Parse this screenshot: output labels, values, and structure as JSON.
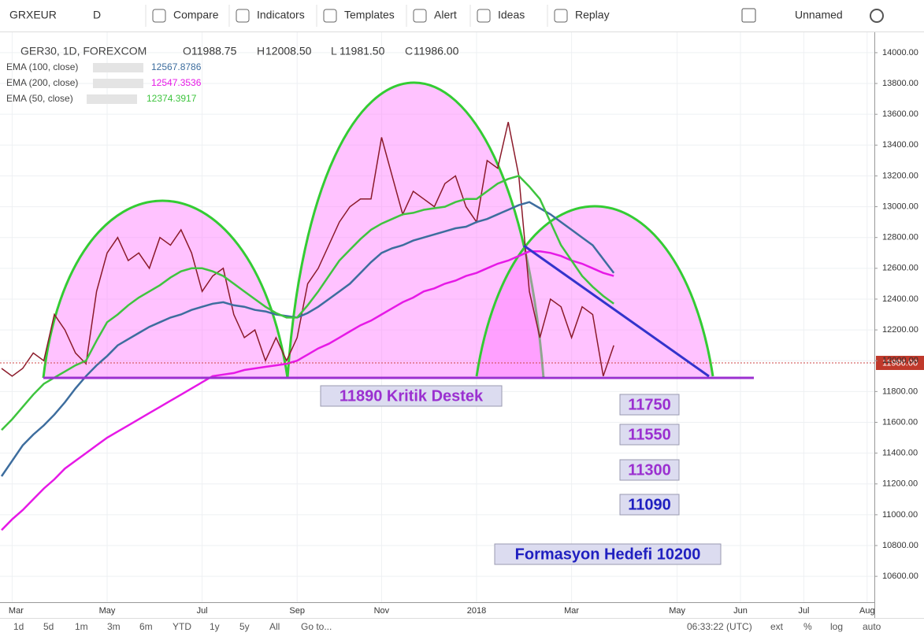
{
  "toolbar": {
    "symbol": "GRXEUR",
    "interval": "D",
    "items": [
      "Compare",
      "Indicators",
      "Templates",
      "Alert",
      "Ideas",
      "Replay"
    ],
    "layout_name": "Unnamed"
  },
  "chart_data": {
    "type": "line",
    "ohlc": [
      {
        "label": "O",
        "value": "11988.75"
      },
      {
        "label": "H",
        "value": "12008.50"
      },
      {
        "label": "L",
        "value": "11981.50"
      },
      {
        "label": "C",
        "value": "11986.00"
      }
    ],
    "last_price_label": "11986.00",
    "annotations": [
      "11890 Kritik Destek",
      "11750",
      "11550",
      "11300",
      "11090",
      "Formasyon Hedefi 10200"
    ],
    "categories": [
      null,
      "Mar",
      null,
      null,
      null,
      null,
      null,
      null,
      null,
      null,
      "May",
      null,
      null,
      null,
      null,
      null,
      null,
      null,
      null,
      "Jul",
      null,
      null,
      null,
      null,
      null,
      null,
      null,
      null,
      "Sep",
      null,
      null,
      null,
      null,
      null,
      null,
      null,
      "Nov",
      null,
      null,
      null,
      null,
      null,
      null,
      null,
      null,
      "2018",
      null,
      null,
      null,
      null,
      null,
      null,
      null,
      null,
      "Mar",
      null,
      null,
      null,
      null,
      null,
      null,
      null,
      null,
      null,
      "May",
      null,
      null,
      null,
      null,
      null,
      "Jun",
      null,
      null,
      null,
      null,
      null,
      "Jul",
      null,
      null,
      null,
      null,
      null,
      "Aug"
    ],
    "series": [
      {
        "name": "GER30, 1D, FOREXCOM",
        "color": "#8b1a2a",
        "values": [
          11950,
          11900,
          11950,
          12050,
          12000,
          12300,
          12200,
          12050,
          11980,
          12450,
          12700,
          12800,
          12650,
          12700,
          12600,
          12800,
          12750,
          12850,
          12700,
          12450,
          12550,
          12600,
          12300,
          12150,
          12200,
          12000,
          12150,
          12000,
          12150,
          12500,
          12600,
          12750,
          12900,
          13000,
          13050,
          13050,
          13450,
          13200,
          12950,
          13100,
          13050,
          13000,
          13150,
          13200,
          13000,
          12900,
          13300,
          13250,
          13550,
          13200,
          12450,
          12150,
          12400,
          12350,
          12150,
          12350,
          12300,
          11900,
          12100,
          null,
          null,
          null,
          null,
          null,
          null,
          null,
          null,
          null,
          null,
          null,
          null,
          null,
          null,
          null,
          null,
          null,
          null,
          null,
          null,
          null,
          null,
          null,
          null
        ]
      },
      {
        "name": "EMA (100, close)",
        "color": "#3d6d9e",
        "legend_value": "12567.8786",
        "values": [
          11250,
          11350,
          11450,
          11520,
          11580,
          11650,
          11730,
          11820,
          11900,
          11970,
          12030,
          12100,
          12140,
          12180,
          12220,
          12250,
          12280,
          12300,
          12330,
          12350,
          12370,
          12380,
          12360,
          12350,
          12330,
          12320,
          12300,
          12290,
          12280,
          12310,
          12350,
          12400,
          12450,
          12500,
          12570,
          12640,
          12700,
          12730,
          12750,
          12780,
          12800,
          12820,
          12840,
          12860,
          12870,
          12900,
          12920,
          12950,
          12980,
          13010,
          13030,
          12990,
          12950,
          12900,
          12850,
          12800,
          12750,
          12660,
          12570,
          null,
          null,
          null,
          null,
          null,
          null,
          null,
          null,
          null,
          null,
          null,
          null,
          null,
          null,
          null,
          null,
          null,
          null,
          null,
          null,
          null,
          null,
          null,
          null
        ]
      },
      {
        "name": "EMA (200, close)",
        "color": "#e619e6",
        "legend_value": "12547.3536",
        "values": [
          10900,
          10970,
          11030,
          11100,
          11170,
          11230,
          11300,
          11350,
          11400,
          11450,
          11500,
          11540,
          11580,
          11620,
          11660,
          11700,
          11740,
          11780,
          11820,
          11860,
          11900,
          11910,
          11920,
          11940,
          11950,
          11960,
          11970,
          11980,
          12000,
          12040,
          12080,
          12110,
          12150,
          12190,
          12230,
          12260,
          12300,
          12340,
          12380,
          12410,
          12450,
          12470,
          12500,
          12520,
          12550,
          12570,
          12600,
          12630,
          12650,
          12680,
          12710,
          12710,
          12700,
          12680,
          12650,
          12630,
          12600,
          12570,
          12550,
          null,
          null,
          null,
          null,
          null,
          null,
          null,
          null,
          null,
          null,
          null,
          null,
          null,
          null,
          null,
          null,
          null,
          null,
          null,
          null,
          null,
          null,
          null,
          null
        ]
      },
      {
        "name": "EMA (50, close)",
        "color": "#3ec43e",
        "legend_value": "12374.3917",
        "values": [
          11550,
          11620,
          11700,
          11780,
          11850,
          11890,
          11930,
          11970,
          12000,
          12130,
          12250,
          12300,
          12360,
          12410,
          12450,
          12490,
          12540,
          12580,
          12600,
          12600,
          12580,
          12550,
          12500,
          12450,
          12400,
          12350,
          12310,
          12280,
          12280,
          12360,
          12450,
          12550,
          12650,
          12720,
          12790,
          12850,
          12890,
          12920,
          12950,
          12960,
          12980,
          12990,
          13000,
          13030,
          13050,
          13050,
          13100,
          13150,
          13180,
          13200,
          13130,
          13050,
          12900,
          12750,
          12650,
          12550,
          12480,
          12420,
          12370,
          null,
          null,
          null,
          null,
          null,
          null,
          null,
          null,
          null,
          null,
          null,
          null,
          null,
          null,
          null,
          null,
          null,
          null,
          null,
          null,
          null,
          null,
          null,
          null
        ]
      }
    ],
    "ylim": [
      10432,
      14112
    ],
    "yticks": [
      {
        "value": 10600,
        "label": "10600.00"
      },
      {
        "value": 10800,
        "label": "10800.00"
      },
      {
        "value": 11000,
        "label": "11000.00"
      },
      {
        "value": 11200,
        "label": "11200.00"
      },
      {
        "value": 11400,
        "label": "11400.00"
      },
      {
        "value": 11600,
        "label": "11600.00"
      },
      {
        "value": 11800,
        "label": "11800.00"
      },
      {
        "value": 12000,
        "label": "12000.00"
      },
      {
        "value": 12200,
        "label": "12200.00"
      },
      {
        "value": 12400,
        "label": "12400.00"
      },
      {
        "value": 12600,
        "label": "12600.00"
      },
      {
        "value": 12800,
        "label": "12800.00"
      },
      {
        "value": 13000,
        "label": "13000.00"
      },
      {
        "value": 13200,
        "label": "13200.00"
      },
      {
        "value": 13400,
        "label": "13400.00"
      },
      {
        "value": 13600,
        "label": "13600.00"
      },
      {
        "value": 13800,
        "label": "13800.00"
      },
      {
        "value": 14000,
        "label": "14000.00"
      }
    ],
    "grid": true
  },
  "bottom_bar": {
    "ranges": [
      "1d",
      "5d",
      "1m",
      "3m",
      "6m",
      "YTD",
      "1y",
      "5y",
      "All",
      "Go to..."
    ],
    "clock": "06:33:22 (UTC)",
    "options": [
      "ext",
      "%",
      "log",
      "auto"
    ]
  }
}
